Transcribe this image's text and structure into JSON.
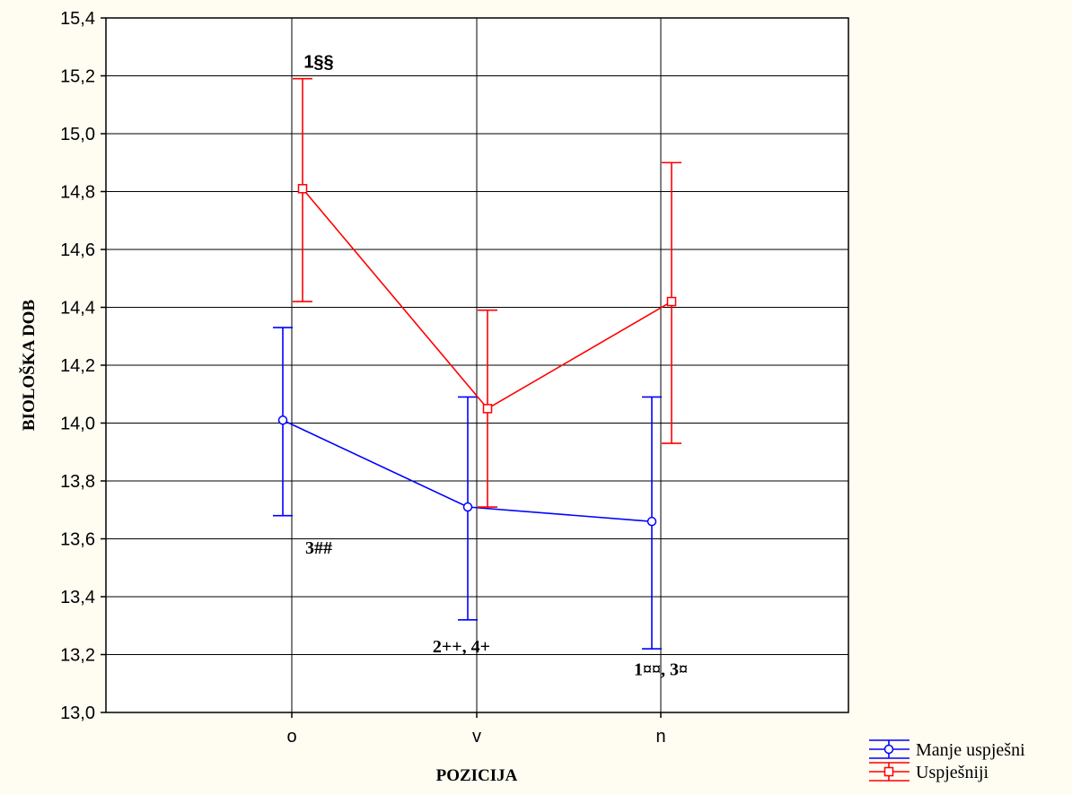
{
  "chart_data": {
    "type": "line",
    "title": "",
    "xlabel": "POZICIJA",
    "ylabel": "BIOLOŠKA DOB",
    "categories": [
      "o",
      "v",
      "n"
    ],
    "ylim": [
      13.0,
      15.4
    ],
    "y_ticks": [
      "13,0",
      "13,2",
      "13,4",
      "13,6",
      "13,8",
      "14,0",
      "14,2",
      "14,4",
      "14,6",
      "14,8",
      "15,0",
      "15,2",
      "15,4"
    ],
    "grid": true,
    "legend_position": "bottom-right",
    "series": [
      {
        "name": "Manje uspješni",
        "color": "#0000FF",
        "marker": "circle",
        "values": [
          14.01,
          13.71,
          13.66
        ],
        "lower": [
          13.68,
          13.32,
          13.22
        ],
        "upper": [
          14.33,
          14.09,
          14.09
        ]
      },
      {
        "name": "Uspješniji",
        "color": "#FF0000",
        "marker": "square",
        "values": [
          14.81,
          14.05,
          14.42
        ],
        "lower": [
          14.42,
          13.71,
          13.93
        ],
        "upper": [
          15.19,
          14.39,
          14.9
        ]
      }
    ],
    "annotations": [
      {
        "text": "1§§",
        "category": "o",
        "y": 15.25,
        "style": "sans"
      },
      {
        "text": "3##",
        "category": "o",
        "y": 13.57,
        "style": "serif"
      },
      {
        "text": "2++, 4+",
        "category": "v",
        "y": 13.23,
        "style": "serif"
      },
      {
        "text": "1¤¤, 3¤",
        "category": "n",
        "y": 13.15,
        "style": "serif"
      }
    ]
  }
}
